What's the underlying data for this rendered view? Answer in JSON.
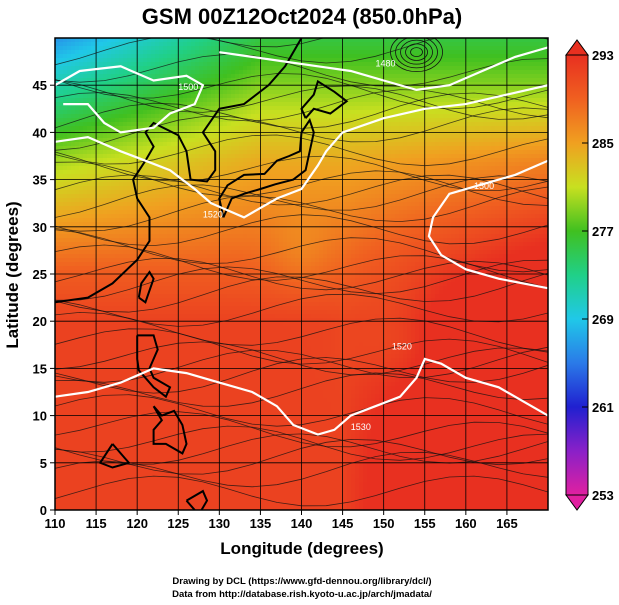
{
  "title": "GSM 00Z12Oct2024 (850.0hPa)",
  "xlabel": "Longitude (degrees)",
  "ylabel": "Latitude (degrees)",
  "credit_line1": "Drawing by DCL (https://www.gfd-dennou.org/library/dcl/)",
  "credit_line2": "Data from http://database.rish.kyoto-u.ac.jp/arch/jmadata/",
  "chart_data": {
    "type": "heatmap",
    "variable": "temperature with streamlines and geopotential height contours",
    "xlim": [
      110,
      170
    ],
    "ylim": [
      0,
      50
    ],
    "x_ticks": [
      110,
      115,
      120,
      125,
      130,
      135,
      140,
      145,
      150,
      155,
      160,
      165
    ],
    "y_ticks": [
      0,
      5,
      10,
      15,
      20,
      25,
      30,
      35,
      40,
      45
    ],
    "grid": true,
    "colorbar": {
      "ticks": [
        253,
        261,
        269,
        277,
        285,
        293
      ],
      "range": [
        253,
        293
      ],
      "stops": [
        {
          "v": 253,
          "color": "#e020a0"
        },
        {
          "v": 257,
          "color": "#8a20c8"
        },
        {
          "v": 261,
          "color": "#2020d0"
        },
        {
          "v": 265,
          "color": "#2a7ae8"
        },
        {
          "v": 269,
          "color": "#20c8e8"
        },
        {
          "v": 273,
          "color": "#20d088"
        },
        {
          "v": 277,
          "color": "#40c020"
        },
        {
          "v": 281,
          "color": "#c8e020"
        },
        {
          "v": 285,
          "color": "#f0a020"
        },
        {
          "v": 289,
          "color": "#f06020"
        },
        {
          "v": 293,
          "color": "#e83020"
        }
      ]
    },
    "contour_labels": [
      "1500",
      "1480",
      "1520",
      "1500",
      "1520",
      "1530"
    ]
  }
}
